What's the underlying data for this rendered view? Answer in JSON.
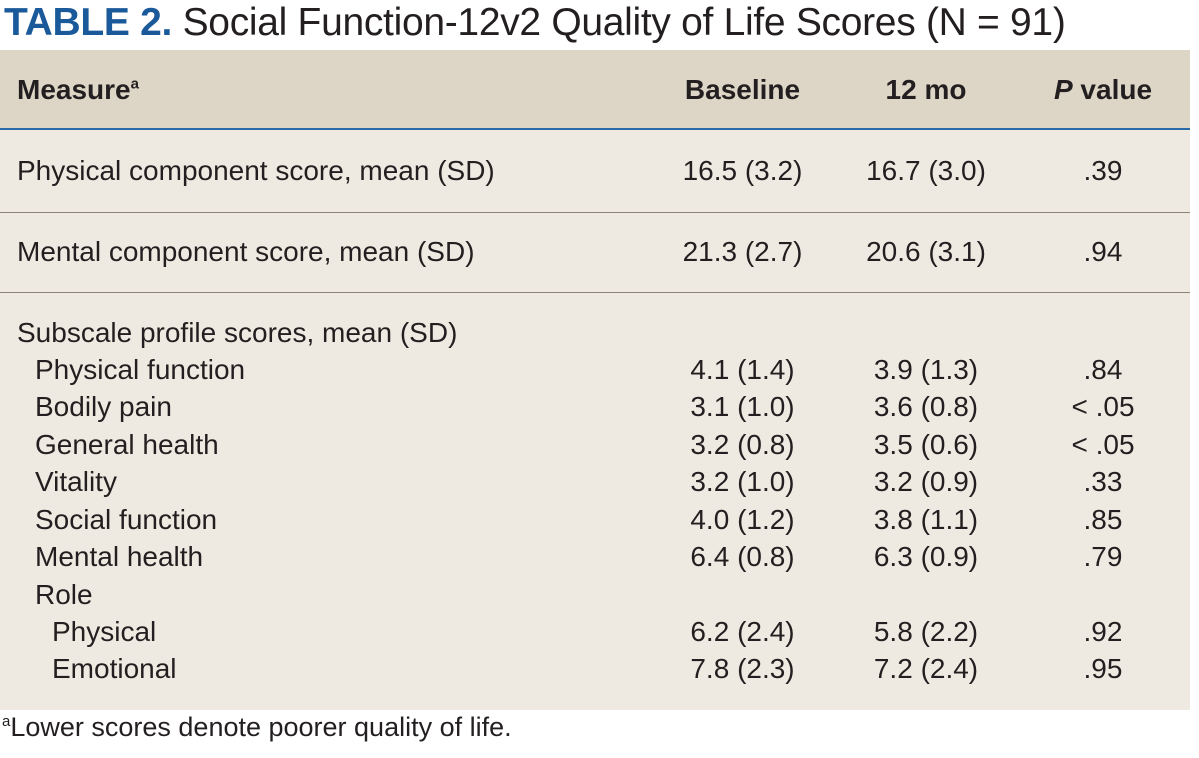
{
  "title": {
    "label": "TABLE 2.",
    "text": " Social Function-12v2 Quality of Life Scores (N = 91)"
  },
  "header": {
    "measure": "Measure",
    "measure_sup": "a",
    "baseline": "Baseline",
    "month12": "12 mo",
    "p_value_italic": "P",
    "p_value_rest": " value"
  },
  "rows": {
    "physical": {
      "label": "Physical component score, mean (SD)",
      "baseline": "16.5 (3.2)",
      "month12": "16.7 (3.0)",
      "p": ".39"
    },
    "mental": {
      "label": "Mental component score, mean (SD)",
      "baseline": "21.3 (2.7)",
      "month12": "20.6 (3.1)",
      "p": ".94"
    },
    "subscale_heading": "Subscale profile scores, mean (SD)",
    "physical_function": {
      "label": "Physical function",
      "baseline": "4.1 (1.4)",
      "month12": "3.9 (1.3)",
      "p": ".84"
    },
    "bodily_pain": {
      "label": "Bodily pain",
      "baseline": "3.1 (1.0)",
      "month12": "3.6 (0.8)",
      "p": "< .05"
    },
    "general_health": {
      "label": "General health",
      "baseline": "3.2 (0.8)",
      "month12": "3.5 (0.6)",
      "p": "< .05"
    },
    "vitality": {
      "label": "Vitality",
      "baseline": "3.2 (1.0)",
      "month12": "3.2 (0.9)",
      "p": ".33"
    },
    "social_function": {
      "label": "Social function",
      "baseline": "4.0 (1.2)",
      "month12": "3.8 (1.1)",
      "p": ".85"
    },
    "mental_health": {
      "label": "Mental health",
      "baseline": "6.4 (0.8)",
      "month12": "6.3 (0.9)",
      "p": ".79"
    },
    "role_heading": "Role",
    "role_physical": {
      "label": "Physical",
      "baseline": "6.2 (2.4)",
      "month12": "5.8 (2.2)",
      "p": ".92"
    },
    "role_emotional": {
      "label": "Emotional",
      "baseline": "7.8 (2.3)",
      "month12": "7.2 (2.4)",
      "p": ".95"
    }
  },
  "footnote": {
    "sup": "a",
    "text": "Lower scores denote poorer quality of life."
  }
}
